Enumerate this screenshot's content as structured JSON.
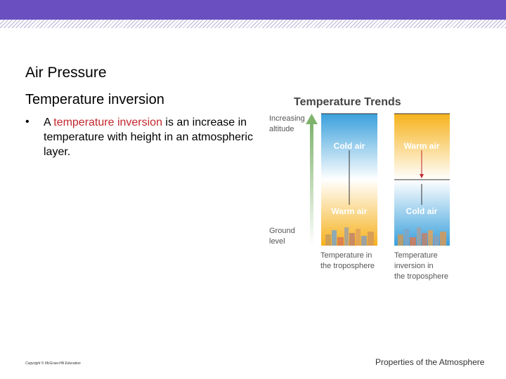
{
  "slide": {
    "title": "Air Pressure",
    "subtitle": "Temperature inversion",
    "bullet_marker": "•",
    "bullet_pre": "A ",
    "bullet_highlight": "temperature inversion",
    "bullet_post": " is an increase in temperature with height in an atmospheric layer.",
    "copyright": "Copyright © McGraw-Hill Education",
    "footer": "Properties of the Atmosphere"
  },
  "figure": {
    "title": "Temperature Trends",
    "increasing_altitude": [
      "Increasing",
      "altitude"
    ],
    "ground_level": [
      "Ground",
      "level"
    ],
    "left_panel": {
      "top_label": "Cold air",
      "bottom_label": "Warm air",
      "caption": [
        "Temperature in",
        "the troposphere"
      ]
    },
    "right_panel": {
      "top_label": "Warm air",
      "bottom_label": "Cold air",
      "caption": [
        "Temperature",
        "inversion in",
        "the troposphere"
      ]
    },
    "colors": {
      "cold": "#3aa0dc",
      "warm": "#f6b21c",
      "arrow": "#8ab87a",
      "topbar": "#6a4fc0",
      "highlight": "#c1272d"
    }
  }
}
